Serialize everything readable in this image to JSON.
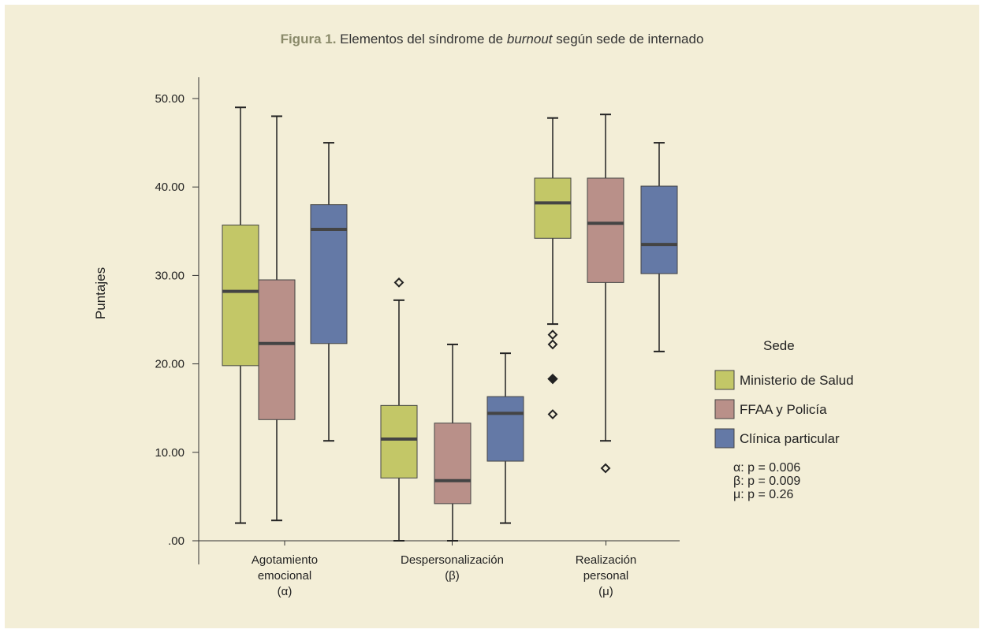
{
  "figure": {
    "label": "Figura 1.",
    "title_pre": "Elementos del síndrome de",
    "title_italic": "burnout",
    "title_post": "según sede de internado"
  },
  "chart_data": {
    "type": "boxplot",
    "ylabel": "Puntajes",
    "ylim": [
      0,
      50
    ],
    "yticks": [
      0,
      10,
      20,
      30,
      40,
      50
    ],
    "ytick_labels": [
      ".00",
      "10.00",
      "20.00",
      "30.00",
      "40.00",
      "50.00"
    ],
    "categories": [
      {
        "lines": [
          "Agotamiento",
          "emocional",
          "(α)"
        ]
      },
      {
        "lines": [
          "Despersonalización",
          "(β)"
        ]
      },
      {
        "lines": [
          "Realización",
          "personal",
          "(μ)"
        ]
      }
    ],
    "legend": {
      "title": "Sede",
      "position": "right"
    },
    "series": [
      {
        "name": "Ministerio de Salud",
        "color": "#c3c767",
        "boxes": [
          {
            "min": 2.0,
            "q1": 19.8,
            "median": 28.2,
            "q3": 35.7,
            "max": 49.0,
            "outliers": [],
            "extremes": []
          },
          {
            "min": 0.0,
            "q1": 7.1,
            "median": 11.5,
            "q3": 15.3,
            "max": 27.2,
            "outliers": [
              29.2
            ],
            "extremes": []
          },
          {
            "min": 24.5,
            "q1": 34.2,
            "median": 38.2,
            "q3": 41.0,
            "max": 47.8,
            "outliers": [
              23.3,
              22.2,
              14.3
            ],
            "extremes": [
              18.3
            ]
          }
        ]
      },
      {
        "name": "FFAA y Policía",
        "color": "#b99089",
        "boxes": [
          {
            "min": 2.3,
            "q1": 13.7,
            "median": 22.3,
            "q3": 29.5,
            "max": 48.0,
            "outliers": [],
            "extremes": []
          },
          {
            "min": 0.0,
            "q1": 4.2,
            "median": 6.8,
            "q3": 13.3,
            "max": 22.2,
            "outliers": [],
            "extremes": []
          },
          {
            "min": 11.3,
            "q1": 29.2,
            "median": 35.9,
            "q3": 41.0,
            "max": 48.2,
            "outliers": [
              8.2
            ],
            "extremes": []
          }
        ]
      },
      {
        "name": "Clínica particular",
        "color": "#6479a6",
        "boxes": [
          {
            "min": 11.3,
            "q1": 22.3,
            "median": 35.2,
            "q3": 38.0,
            "max": 45.0,
            "outliers": [],
            "extremes": []
          },
          {
            "min": 2.0,
            "q1": 9.0,
            "median": 14.4,
            "q3": 16.3,
            "max": 21.2,
            "outliers": [],
            "extremes": []
          },
          {
            "min": 21.4,
            "q1": 30.2,
            "median": 33.5,
            "q3": 40.1,
            "max": 45.0,
            "outliers": [],
            "extremes": []
          }
        ]
      }
    ],
    "annotations": [
      "α: p = 0.006",
      "β: p = 0.009",
      "μ: p = 0.26"
    ]
  }
}
